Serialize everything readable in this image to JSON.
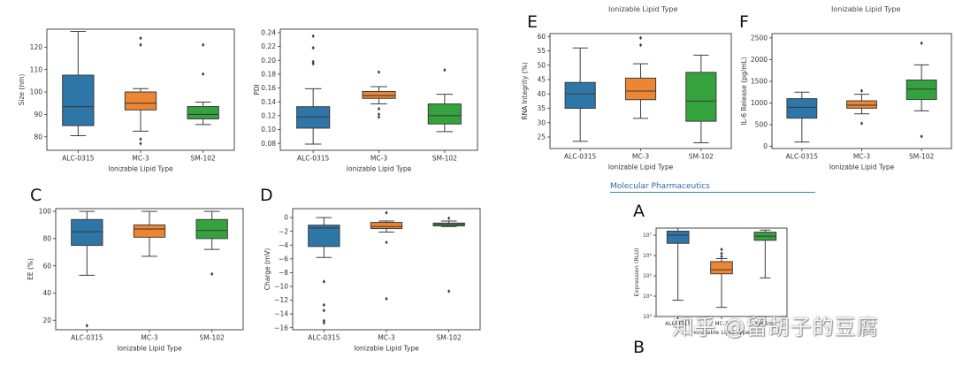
{
  "labels": {
    "E": "E",
    "F": "F",
    "C": "C",
    "D": "D",
    "A": "A",
    "B": "B"
  },
  "cut_text": {
    "top_e": "Ionizable Lipid Type",
    "top_f": "Ionizable Lipid Type",
    "journal": "Molecular Pharmaceutics"
  },
  "watermark": "知乎 @留胡子的豆腐",
  "colors": {
    "ALC-0315": "#2e75a8",
    "MC-3": "#ec8632",
    "SM-102": "#34a23d"
  },
  "chart_data": [
    {
      "id": "size",
      "type": "box",
      "xlabel": "Ionizable Lipid Type",
      "ylabel": "Size (nm)",
      "ylim": [
        74,
        128
      ],
      "yticks": [
        80,
        90,
        100,
        110,
        120
      ],
      "ytick_labels": [
        "80",
        "90",
        "100",
        "110",
        "120"
      ],
      "groups": [
        {
          "name": "ALC-0315",
          "whislo": 80.5,
          "q1": 85,
          "med": 93.5,
          "q3": 107.5,
          "whishi": 127,
          "fliers": []
        },
        {
          "name": "MC-3",
          "whislo": 82.5,
          "q1": 92,
          "med": 95,
          "q3": 100,
          "whishi": 101.5,
          "fliers": [
            77,
            79,
            121,
            124
          ]
        },
        {
          "name": "SM-102",
          "whislo": 85.5,
          "q1": 88,
          "med": 90,
          "q3": 93.5,
          "whishi": 95.5,
          "fliers": [
            108,
            121
          ]
        }
      ]
    },
    {
      "id": "pdi",
      "type": "box",
      "xlabel": "Ionizable Lipid Type",
      "ylabel": "PDI",
      "ylim": [
        0.07,
        0.245
      ],
      "yticks": [
        0.08,
        0.1,
        0.12,
        0.14,
        0.16,
        0.18,
        0.2,
        0.22,
        0.24
      ],
      "ytick_labels": [
        "0.08",
        "0.10",
        "0.12",
        "0.14",
        "0.16",
        "0.18",
        "0.20",
        "0.22",
        "0.24"
      ],
      "groups": [
        {
          "name": "ALC-0315",
          "whislo": 0.079,
          "q1": 0.102,
          "med": 0.118,
          "q3": 0.133,
          "whishi": 0.159,
          "fliers": [
            0.195,
            0.198,
            0.218,
            0.235
          ]
        },
        {
          "name": "MC-3",
          "whislo": 0.137,
          "q1": 0.145,
          "med": 0.149,
          "q3": 0.155,
          "whishi": 0.162,
          "fliers": [
            0.118,
            0.122,
            0.13,
            0.183
          ]
        },
        {
          "name": "SM-102",
          "whislo": 0.097,
          "q1": 0.108,
          "med": 0.12,
          "q3": 0.137,
          "whishi": 0.151,
          "fliers": [
            0.186
          ]
        }
      ]
    },
    {
      "id": "rna",
      "type": "box",
      "xlabel": "Ionizable Lipid Type",
      "ylabel": "RNA Integrity (%)",
      "ylim": [
        21,
        61
      ],
      "yticks": [
        25,
        30,
        35,
        40,
        45,
        50,
        55,
        60
      ],
      "ytick_labels": [
        "25",
        "30",
        "35",
        "40",
        "45",
        "50",
        "55",
        "60"
      ],
      "groups": [
        {
          "name": "ALC-0315",
          "whislo": 23.5,
          "q1": 35,
          "med": 40,
          "q3": 44,
          "whishi": 56,
          "fliers": []
        },
        {
          "name": "MC-3",
          "whislo": 31.5,
          "q1": 38,
          "med": 41,
          "q3": 45.5,
          "whishi": 50.5,
          "fliers": [
            57,
            59.5
          ]
        },
        {
          "name": "SM-102",
          "whislo": 23,
          "q1": 30.5,
          "med": 37.5,
          "q3": 47.5,
          "whishi": 53.5,
          "fliers": []
        }
      ]
    },
    {
      "id": "il6",
      "type": "box",
      "xlabel": "Ionizable Lipid Type",
      "ylabel": "IL-6 Release (pg/mL)",
      "ylim": [
        -50,
        2600
      ],
      "yticks": [
        0,
        500,
        1000,
        1500,
        2000,
        2500
      ],
      "ytick_labels": [
        "0",
        "500",
        "1000",
        "1500",
        "2000",
        "2500"
      ],
      "groups": [
        {
          "name": "ALC-0315",
          "whislo": 100,
          "q1": 650,
          "med": 900,
          "q3": 1100,
          "whishi": 1250,
          "fliers": []
        },
        {
          "name": "MC-3",
          "whislo": 750,
          "q1": 880,
          "med": 950,
          "q3": 1050,
          "whishi": 1200,
          "fliers": [
            530,
            1280
          ]
        },
        {
          "name": "SM-102",
          "whislo": 820,
          "q1": 1080,
          "med": 1320,
          "q3": 1530,
          "whishi": 1880,
          "fliers": [
            230,
            2380
          ]
        }
      ]
    },
    {
      "id": "ee",
      "type": "box",
      "xlabel": "Ionizable Lipid Type",
      "ylabel": "EE (%)",
      "ylim": [
        13,
        102
      ],
      "yticks": [
        20,
        40,
        60,
        80,
        100
      ],
      "ytick_labels": [
        "20",
        "40",
        "60",
        "80",
        "100"
      ],
      "groups": [
        {
          "name": "ALC-0315",
          "whislo": 53,
          "q1": 75,
          "med": 85,
          "q3": 94,
          "whishi": 100,
          "fliers": [
            16
          ]
        },
        {
          "name": "MC-3",
          "whislo": 67,
          "q1": 81,
          "med": 87,
          "q3": 90,
          "whishi": 100,
          "fliers": []
        },
        {
          "name": "SM-102",
          "whislo": 72,
          "q1": 80,
          "med": 86,
          "q3": 94,
          "whishi": 100,
          "fliers": [
            54
          ]
        }
      ]
    },
    {
      "id": "charge",
      "type": "box",
      "xlabel": "Ionizable Lipid Type",
      "ylabel": "Charge (mV)",
      "ylim": [
        -16.3,
        1.3
      ],
      "yticks": [
        0,
        -2,
        -4,
        -6,
        -8,
        -10,
        -12,
        -14,
        -16
      ],
      "ytick_labels": [
        "0",
        "−2",
        "−4",
        "−6",
        "−8",
        "−10",
        "−12",
        "−14",
        "−16"
      ],
      "groups": [
        {
          "name": "ALC-0315",
          "whislo": -5.8,
          "q1": -4.2,
          "med": -1.5,
          "q3": -1.1,
          "whishi": 0,
          "fliers": [
            -9.3,
            -12.7,
            -13.5,
            -15.0,
            -15.3
          ]
        },
        {
          "name": "MC-3",
          "whislo": -2.1,
          "q1": -1.6,
          "med": -1.3,
          "q3": -0.7,
          "whishi": -0.5,
          "fliers": [
            0.7,
            -3.6,
            -11.8
          ]
        },
        {
          "name": "SM-102",
          "whislo": -1.3,
          "q1": -1.2,
          "med": -1.0,
          "q3": -0.8,
          "whishi": -0.5,
          "fliers": [
            -0.1,
            -10.7
          ]
        }
      ]
    },
    {
      "id": "expr",
      "type": "box",
      "xlabel": "Ionizable Lipid Type",
      "ylabel": "Expression (RLU)",
      "yscale": "log",
      "ylim": [
        3,
        7.35
      ],
      "yticks": [
        3,
        4,
        5,
        6,
        7
      ],
      "ytick_labels": [
        "10³",
        "10⁴",
        "10⁵",
        "10⁶",
        "10⁷"
      ],
      "xtick_labels": [
        "ALC-0315",
        "MC-3",
        "SM-102"
      ],
      "groups": [
        {
          "name": "ALC-0315",
          "whislo": 3.8,
          "q1": 6.6,
          "med": 7.0,
          "q3": 7.2,
          "whishi": 7.35,
          "fliers": []
        },
        {
          "name": "MC-3",
          "whislo": 3.45,
          "q1": 5.1,
          "med": 5.3,
          "q3": 5.7,
          "whishi": 5.85,
          "fliers": [
            5.95,
            6.1,
            6.3
          ]
        },
        {
          "name": "SM-102",
          "whislo": 4.9,
          "q1": 6.75,
          "med": 6.95,
          "q3": 7.15,
          "whishi": 7.25,
          "fliers": []
        }
      ]
    }
  ]
}
